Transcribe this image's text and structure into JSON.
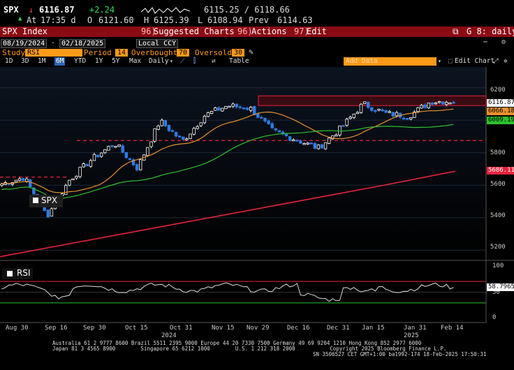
{
  "header": {
    "ticker": "SPX",
    "arrow": "↓",
    "last": "6116.87",
    "change": "+2.24",
    "bid_ask": "6115.25 / 6118.66",
    "at_label": "At",
    "time": "17:35 d",
    "open_label": "O",
    "open": "6121.60",
    "high_label": "H",
    "high": "6125.39",
    "low_label": "L",
    "low": "6108.94",
    "prev_label": "Prev",
    "prev": "6114.63"
  },
  "redbar": {
    "security": "SPX Index",
    "suggested_num": "96)",
    "suggested": "Suggested Charts",
    "actions_num": "96)",
    "actions": "Actions",
    "edit_num": "97)",
    "edit": "Edit",
    "page_label": "G 8: daily"
  },
  "range": {
    "start": "08/19/2024",
    "end": "02/18/2025",
    "currency": "Local CCY"
  },
  "study": {
    "label": "Study",
    "value": "RSI",
    "period_label": "Period",
    "period": "14",
    "overbought_label": "Overbought",
    "overbought": "70",
    "oversold_label": "Oversold",
    "oversold": "30"
  },
  "toolbar": {
    "periods": [
      "1D",
      "3D",
      "1M",
      "6M",
      "YTD",
      "1Y",
      "5Y",
      "Max"
    ],
    "selected": "6M",
    "freq": "Daily",
    "table": "Table",
    "add_data": "Add Data",
    "edit_chart": "Edit Chart"
  },
  "price_axis": [
    "6200",
    "6000",
    "5800",
    "5600",
    "5400",
    "5200"
  ],
  "price_tags": {
    "last": "6116.87",
    "ma1": "6066.18",
    "ma2": "6009.19",
    "ma3": "5686.11"
  },
  "rsi_axis": [
    "100",
    "50",
    "0"
  ],
  "rsi_label": "RSI",
  "rsi_value": "58.7965",
  "series_label": "SPX",
  "x_labels": [
    "Aug 30",
    "Sep 16",
    "Sep 30",
    "Oct 15",
    "Oct 31",
    "Nov 15",
    "Nov 29",
    "Dec 16",
    "Dec 31",
    "Jan 15",
    "Jan 31",
    "Feb 14"
  ],
  "year_labels": [
    "2024",
    "2025"
  ],
  "colors": {
    "up": "#ffffff",
    "down": "#2f7be6",
    "ma_fast": "#e8912d",
    "ma_mid": "#2ec02e",
    "ma_slow": "#e8233b",
    "resistance": "#e8233b"
  },
  "footer": {
    "line1": "Australia 61 2 9777 8600 Brazil 5511 2395 9000 Europe 44 20 7330 7500 Germany 49 69 9204 1210 Hong Kong 852 2977 6000",
    "line2": "Japan 81 3 4565 8900        Singapore 65 6212 1000        U.S. 1 212 318 2000           Copyright 2025 Bloomberg Finance L.P.",
    "line3": "SN 3506527 CET  GMT+1:00 ba1992-174 18-Feb-2025 17:50:31"
  },
  "chart_data": {
    "type": "line",
    "title": "",
    "ylim": [
      5150,
      6280
    ],
    "series": [
      {
        "name": "SPX",
        "x": [
          "2024-08-19",
          "2024-08-30",
          "2024-09-06",
          "2024-09-16",
          "2024-09-30",
          "2024-10-15",
          "2024-10-31",
          "2024-11-08",
          "2024-11-15",
          "2024-11-29",
          "2024-12-06",
          "2024-12-16",
          "2024-12-20",
          "2024-12-31",
          "2025-01-10",
          "2025-01-15",
          "2025-01-24",
          "2025-01-31",
          "2025-02-07",
          "2025-02-14",
          "2025-02-18"
        ],
        "values": [
          5608,
          5648,
          5410,
          5633,
          5762,
          5859,
          5705,
          5996,
          5870,
          6032,
          6090,
          6074,
          5931,
          5882,
          5827,
          5950,
          6101,
          6041,
          6026,
          6115,
          6117
        ]
      },
      {
        "name": "6066.18",
        "values": [
          6066.18
        ]
      },
      {
        "name": "6009.19",
        "values": [
          6009.19
        ]
      },
      {
        "name": "5686.11",
        "values": [
          5686.11
        ]
      }
    ],
    "rsi": {
      "period": 14,
      "overbought": 70,
      "oversold": 30,
      "last": 58.7965
    }
  }
}
